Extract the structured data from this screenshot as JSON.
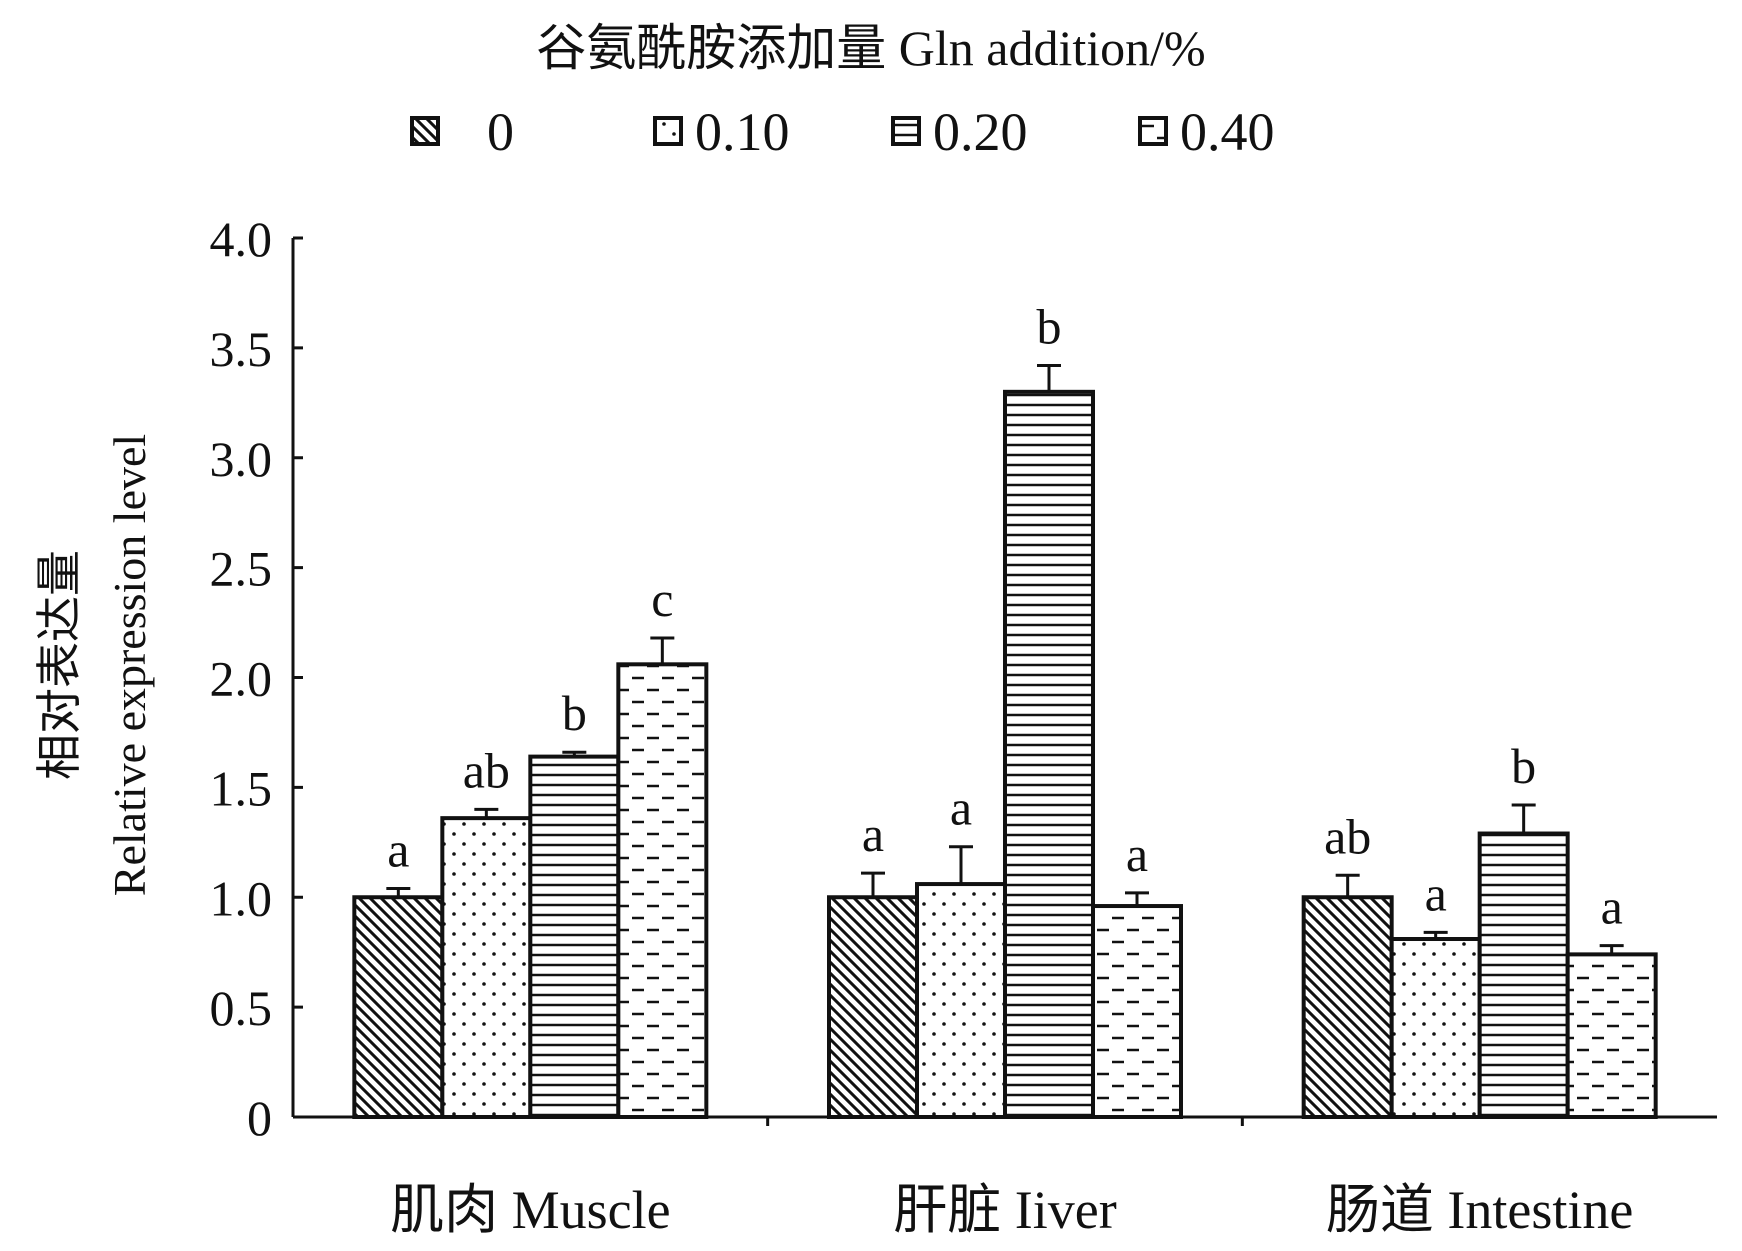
{
  "chart_data": {
    "type": "bar",
    "legend_title": "谷氨酰胺添加量  Gln addition/%",
    "legend_position": "top",
    "ylabel_cn": "相对表达量",
    "ylabel_en": "Relative expression level",
    "ylim": [
      0,
      4.0
    ],
    "yticks": [
      "0",
      "0.5",
      "1.0",
      "1.5",
      "2.0",
      "2.5",
      "3.0",
      "3.5",
      "4.0"
    ],
    "ytick_values": [
      0,
      0.5,
      1.0,
      1.5,
      2.0,
      2.5,
      3.0,
      3.5,
      4.0
    ],
    "categories": [
      "肌肉  Muscle",
      "肝脏  Iiver",
      "肠道  Intestine"
    ],
    "series": [
      {
        "name": "0",
        "pattern": "diagonal",
        "values": [
          1.0,
          1.0,
          1.0
        ],
        "errors": [
          0.04,
          0.11,
          0.1
        ],
        "labels": [
          "a",
          "a",
          "ab"
        ]
      },
      {
        "name": "0.10",
        "pattern": "dots",
        "values": [
          1.36,
          1.06,
          0.81
        ],
        "errors": [
          0.04,
          0.17,
          0.03
        ],
        "labels": [
          "ab",
          "a",
          "a"
        ]
      },
      {
        "name": "0.20",
        "pattern": "horizontal",
        "values": [
          1.64,
          3.3,
          1.29
        ],
        "errors": [
          0.02,
          0.12,
          0.13
        ],
        "labels": [
          "b",
          "b",
          "b"
        ]
      },
      {
        "name": "0.40",
        "pattern": "dashes",
        "values": [
          2.06,
          0.96,
          0.74
        ],
        "errors": [
          0.12,
          0.06,
          0.04
        ],
        "labels": [
          "c",
          "a",
          "a"
        ]
      }
    ],
    "grid": false
  }
}
